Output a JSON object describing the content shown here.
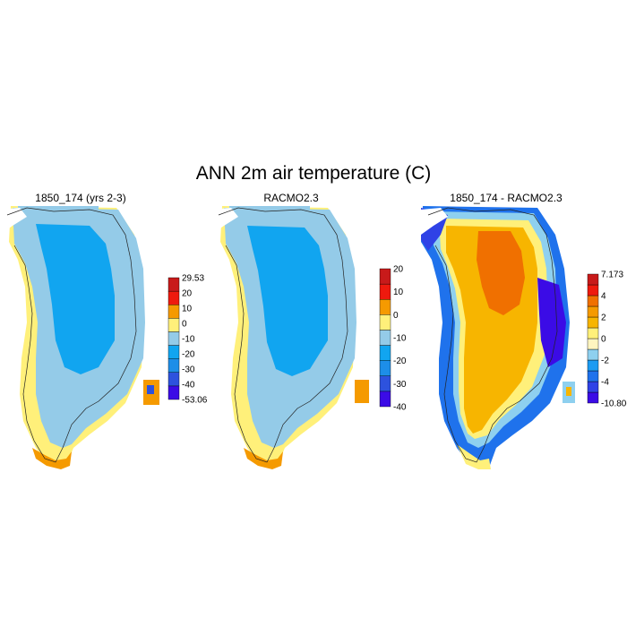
{
  "figure": {
    "title": "ANN 2m air temperature (C)"
  },
  "panels": [
    {
      "title": "1850_174 (yrs 2-3)",
      "colorbar": {
        "colors": [
          "#3b0be6",
          "#2d52de",
          "#1d8ee8",
          "#11a5f0",
          "#94cbe8",
          "#fff07a",
          "#f59a00",
          "#ee1a0e",
          "#c81a1a"
        ],
        "labels": [
          "-53.06",
          "-40",
          "-30",
          "-20",
          "-10",
          "0",
          "10",
          "20",
          "29.53"
        ]
      }
    },
    {
      "title": "RACMO2.3",
      "colorbar": {
        "colors": [
          "#3b0be6",
          "#2d52de",
          "#1d8ee8",
          "#11a5f0",
          "#94cbe8",
          "#fff07a",
          "#f59a00",
          "#ee1a0e",
          "#c81a1a"
        ],
        "labels": [
          "-40",
          "-30",
          "-20",
          "-10",
          "0",
          "10",
          "20"
        ]
      }
    },
    {
      "title": "1850_174 - RACMO2.3",
      "colorbar": {
        "colors": [
          "#3b0be6",
          "#2f42e6",
          "#1f72ec",
          "#1c9bf2",
          "#8ed0ef",
          "#fff5c0",
          "#fff07a",
          "#f7b500",
          "#f59a00",
          "#f07000",
          "#ee1a0e",
          "#c81a1a"
        ],
        "labels": [
          "-10.806",
          "-4",
          "-2",
          "0",
          "2",
          "4",
          "7.173"
        ]
      }
    }
  ]
}
